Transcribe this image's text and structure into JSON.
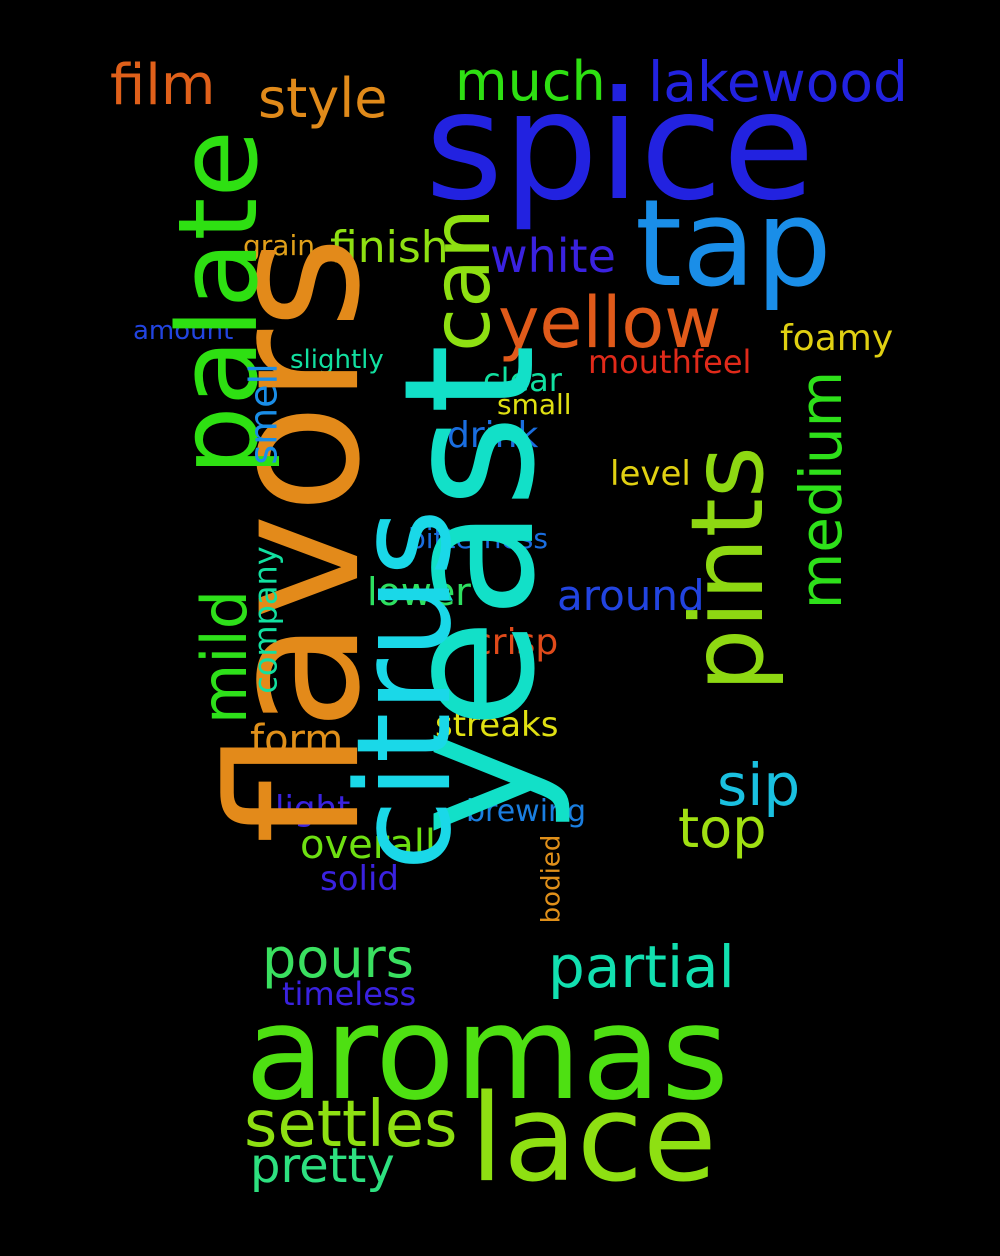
{
  "words": [
    {
      "text": "flavors",
      "color": "#e38a1a"
    },
    {
      "text": "spice",
      "color": "#2222e0"
    },
    {
      "text": "yeast",
      "color": "#12e0c8"
    },
    {
      "text": "citrus",
      "color": "#1ad8e8"
    },
    {
      "text": "aromas",
      "color": "#4ee012"
    },
    {
      "text": "lace",
      "color": "#8ee012"
    },
    {
      "text": "palate",
      "color": "#2ee012"
    },
    {
      "text": "tap",
      "color": "#1a8ee8"
    },
    {
      "text": "pints",
      "color": "#8ed812"
    },
    {
      "text": "can",
      "color": "#8ee012"
    },
    {
      "text": "yellow",
      "color": "#e05a1a"
    },
    {
      "text": "mild",
      "color": "#2ee01a"
    },
    {
      "text": "medium",
      "color": "#2ee01a"
    },
    {
      "text": "lakewood",
      "color": "#2222e0"
    },
    {
      "text": "film",
      "color": "#e0601a"
    },
    {
      "text": "style",
      "color": "#e08a1a"
    },
    {
      "text": "much",
      "color": "#2ee012"
    },
    {
      "text": "white",
      "color": "#3a22e0"
    },
    {
      "text": "finish",
      "color": "#8ee012"
    },
    {
      "text": "smell",
      "color": "#1a8ee8"
    },
    {
      "text": "grain",
      "color": "#e0a01a"
    },
    {
      "text": "amount",
      "color": "#2244e0"
    },
    {
      "text": "slightly",
      "color": "#12e0a0"
    },
    {
      "text": "foamy",
      "color": "#e0d012"
    },
    {
      "text": "mouthfeel",
      "color": "#e02a1a"
    },
    {
      "text": "clear",
      "color": "#12e0a0"
    },
    {
      "text": "small",
      "color": "#e0e012"
    },
    {
      "text": "drink",
      "color": "#1a6ee0"
    },
    {
      "text": "level",
      "color": "#e0d012"
    },
    {
      "text": "bitterness",
      "color": "#1a6ee0"
    },
    {
      "text": "company",
      "color": "#12e0a0"
    },
    {
      "text": "around",
      "color": "#2244e0"
    },
    {
      "text": "lower",
      "color": "#2ee060"
    },
    {
      "text": "crisp",
      "color": "#e04a1a"
    },
    {
      "text": "form",
      "color": "#e0901a"
    },
    {
      "text": "streaks",
      "color": "#e0e012"
    },
    {
      "text": "sip",
      "color": "#1ac0e0"
    },
    {
      "text": "top",
      "color": "#a0e012"
    },
    {
      "text": "light",
      "color": "#3a22e0"
    },
    {
      "text": "brewing",
      "color": "#1a7ee0"
    },
    {
      "text": "overall",
      "color": "#6ee012"
    },
    {
      "text": "solid",
      "color": "#3a22e0"
    },
    {
      "text": "bodied",
      "color": "#e0901a"
    },
    {
      "text": "pours",
      "color": "#3ae060"
    },
    {
      "text": "partial",
      "color": "#12e0b0"
    },
    {
      "text": "timeless",
      "color": "#3a22e0"
    },
    {
      "text": "settles",
      "color": "#8ee012"
    },
    {
      "text": "pretty",
      "color": "#2ee080"
    }
  ]
}
